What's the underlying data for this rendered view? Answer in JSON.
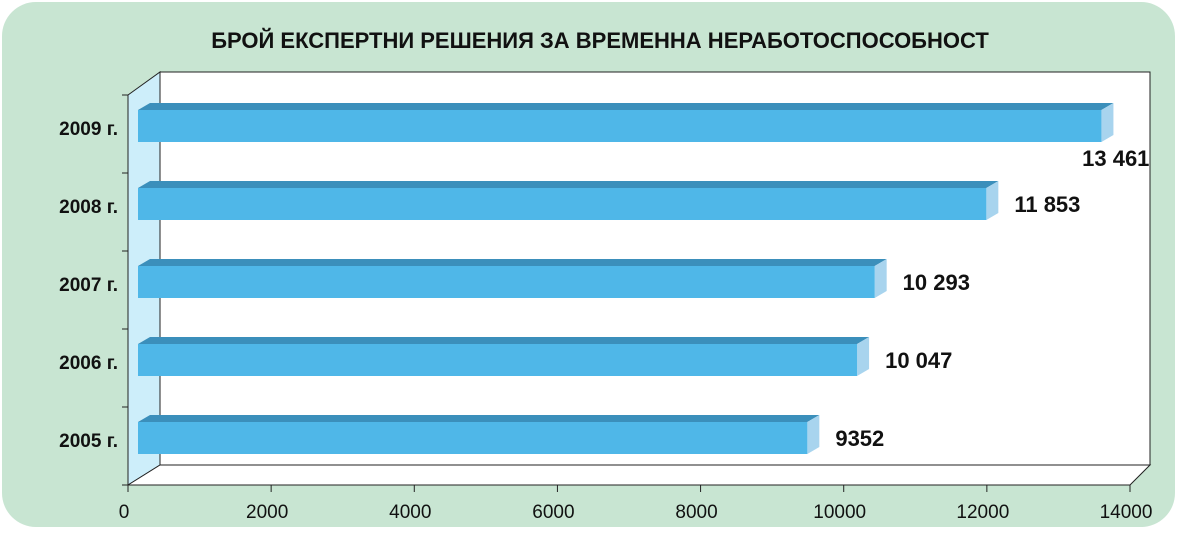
{
  "chart_data": {
    "type": "bar",
    "orientation": "horizontal",
    "title": "БРОЙ ЕКСПЕРТНИ РЕШЕНИЯ ЗА ВРЕМЕННА НЕРАБОТОСПОСОБНОСТ",
    "categories": [
      "2005 г.",
      "2006 г.",
      "2007 г.",
      "2008 г.",
      "2009 г."
    ],
    "values": [
      9352,
      10047,
      10293,
      11853,
      13461
    ],
    "value_labels": [
      "9352",
      "10 047",
      "10 293",
      "11 853",
      "13 461"
    ],
    "color": "#4fb7e8",
    "xlim": [
      0,
      14000
    ],
    "xticks": [
      0,
      2000,
      4000,
      6000,
      8000,
      10000,
      12000,
      14000
    ]
  }
}
